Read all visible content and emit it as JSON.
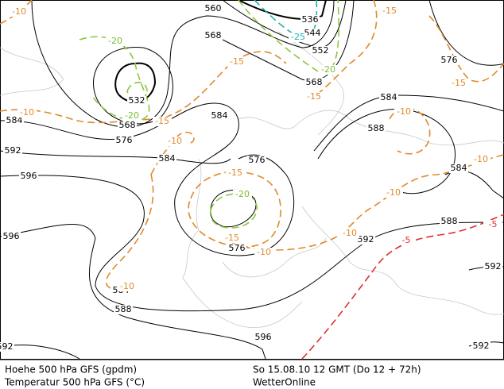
{
  "map": {
    "contour_labels": [
      "560",
      "536",
      "544",
      "552",
      "568",
      "568",
      "532",
      "568",
      "576",
      "584",
      "584",
      "592",
      "584",
      "584",
      "588",
      "576",
      "576",
      "584",
      "596",
      "596",
      "588",
      "592",
      "576",
      "584",
      "588",
      "596",
      "592",
      "592",
      "592",
      "-10",
      "-15",
      "-20",
      "-25",
      "-20",
      "-15",
      "-15",
      "-15",
      "-10",
      "-20",
      "-15",
      "-10",
      "-10",
      "-15",
      "-20",
      "-15",
      "-10",
      "-10",
      "-10",
      "-10",
      "-5",
      "-5",
      "-10"
    ]
  },
  "footer": {
    "line1_left": "Hoehe 500 hPa GFS (gpdm)",
    "line2_left": "Temperatur 500 hPa GFS (°C)",
    "line1_right": "So 15.08.10 12 GMT (Do 12 + 72h)",
    "line2_right": "WetterOnline"
  }
}
